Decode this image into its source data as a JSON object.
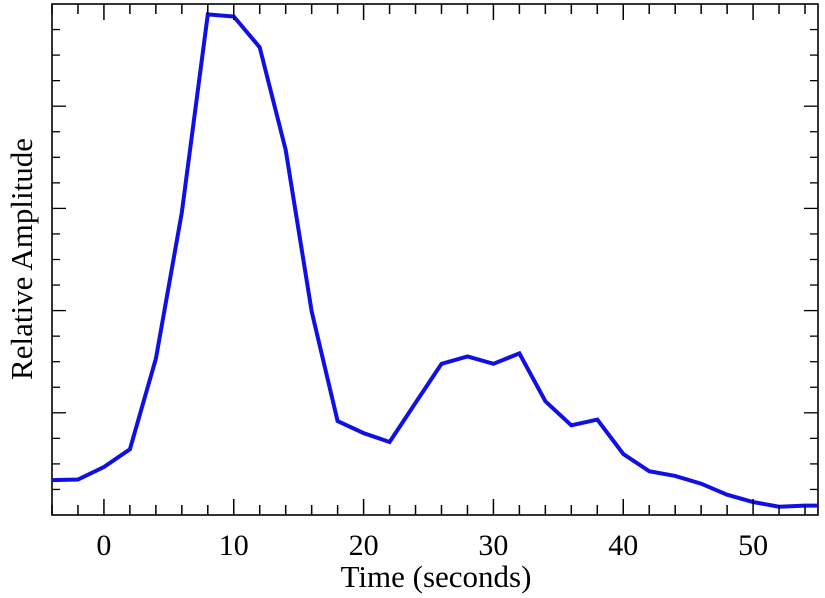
{
  "chart_data": {
    "type": "line",
    "title": "",
    "xlabel": "Time (seconds)",
    "ylabel": "Relative Amplitude",
    "xlim": [
      -4,
      55
    ],
    "ylim": [
      0.02,
      1.0
    ],
    "x_ticks": [
      0,
      10,
      20,
      30,
      40,
      50
    ],
    "x_ticks_labels": [
      "0",
      "10",
      "20",
      "30",
      "40",
      "50"
    ],
    "y_ticks_labels": [],
    "grid": false,
    "legend": "none",
    "series": [
      {
        "color": "#1010e6",
        "x": [
          -4,
          -2,
          0,
          2,
          4,
          6,
          8,
          10,
          12,
          14,
          16,
          18,
          20,
          22,
          24,
          26,
          28,
          30,
          32,
          34,
          36,
          38,
          40,
          42,
          44,
          46,
          48,
          50,
          52,
          54,
          55
        ],
        "y": [
          0.087,
          0.088,
          0.112,
          0.146,
          0.32,
          0.6,
          0.98,
          0.976,
          0.917,
          0.72,
          0.41,
          0.2,
          0.177,
          0.16,
          0.235,
          0.31,
          0.324,
          0.31,
          0.33,
          0.238,
          0.192,
          0.203,
          0.137,
          0.104,
          0.095,
          0.08,
          0.059,
          0.045,
          0.036,
          0.038,
          0.038
        ]
      }
    ]
  }
}
